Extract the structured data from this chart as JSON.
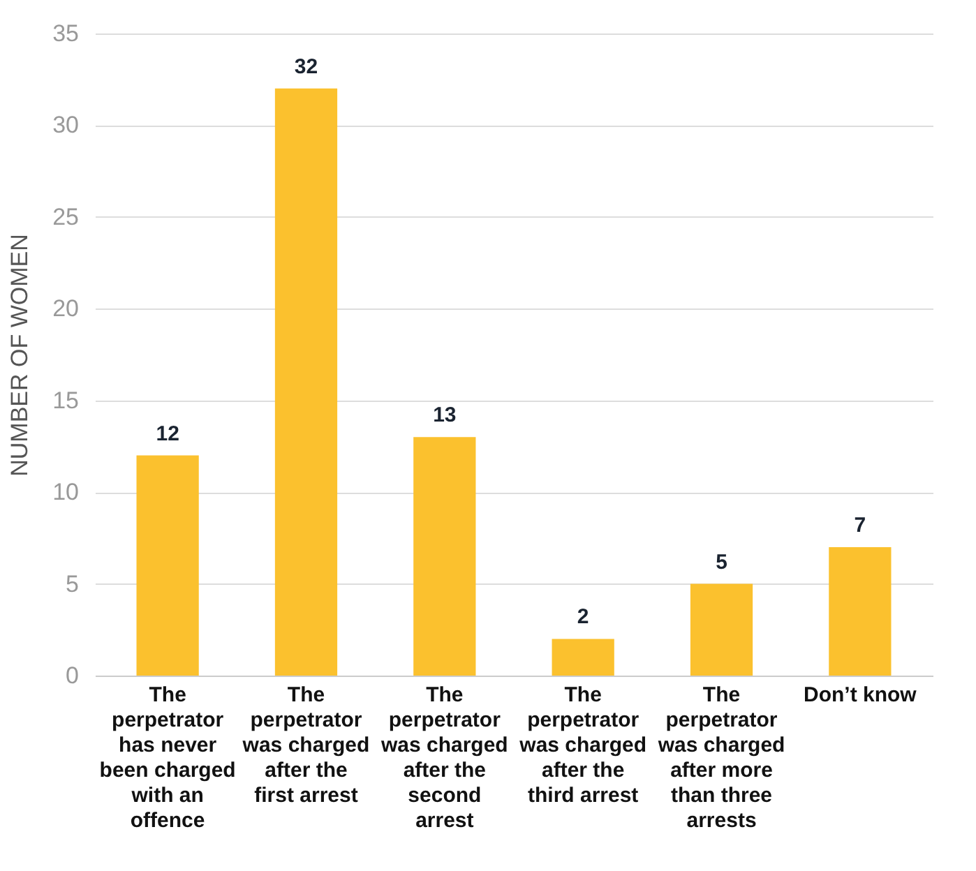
{
  "chart_data": {
    "type": "bar",
    "ylabel": "NUMBER OF WOMEN",
    "categories": [
      "The perpetrator has never been charged with an offence",
      "The perpetrator was charged after the first arrest",
      "The perpetrator was charged after the second arrest",
      "The perpetrator was charged after the third arrest",
      "The perpetrator was charged after more than three arrests",
      "Don’t know"
    ],
    "values": [
      12,
      32,
      13,
      2,
      5,
      7
    ],
    "color": "#fbc12e",
    "ylim": [
      0,
      35
    ],
    "yticks": [
      0,
      5,
      10,
      15,
      20,
      25,
      30,
      35
    ],
    "grid": "y",
    "data_labels": true
  }
}
